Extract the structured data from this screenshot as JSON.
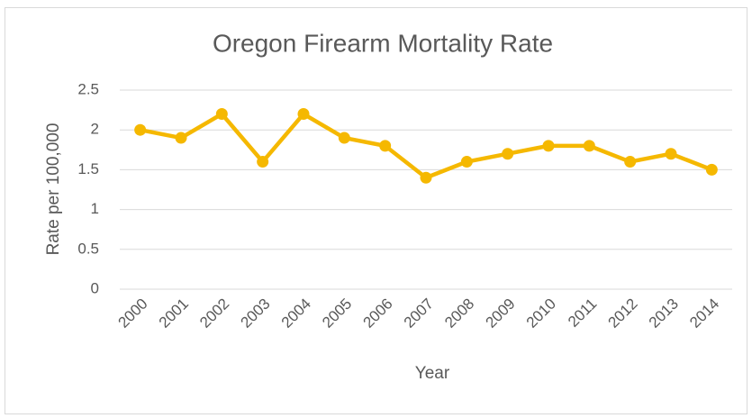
{
  "chart_data": {
    "type": "line",
    "title": "Oregon Firearm Mortality Rate",
    "x_label": "Year",
    "y_label": "Rate per 100,000",
    "categories": [
      "2000",
      "2001",
      "2002",
      "2003",
      "2004",
      "2005",
      "2006",
      "2007",
      "2008",
      "2009",
      "2010",
      "2011",
      "2012",
      "2013",
      "2014"
    ],
    "values": [
      2.0,
      1.9,
      2.2,
      1.6,
      2.2,
      1.9,
      1.8,
      1.4,
      1.6,
      1.7,
      1.8,
      1.8,
      1.6,
      1.7,
      1.5
    ],
    "color": "#f5b800",
    "ylim": [
      0,
      2.5
    ],
    "yticks": [
      0,
      0.5,
      1,
      1.5,
      2,
      2.5
    ],
    "grid": true
  }
}
